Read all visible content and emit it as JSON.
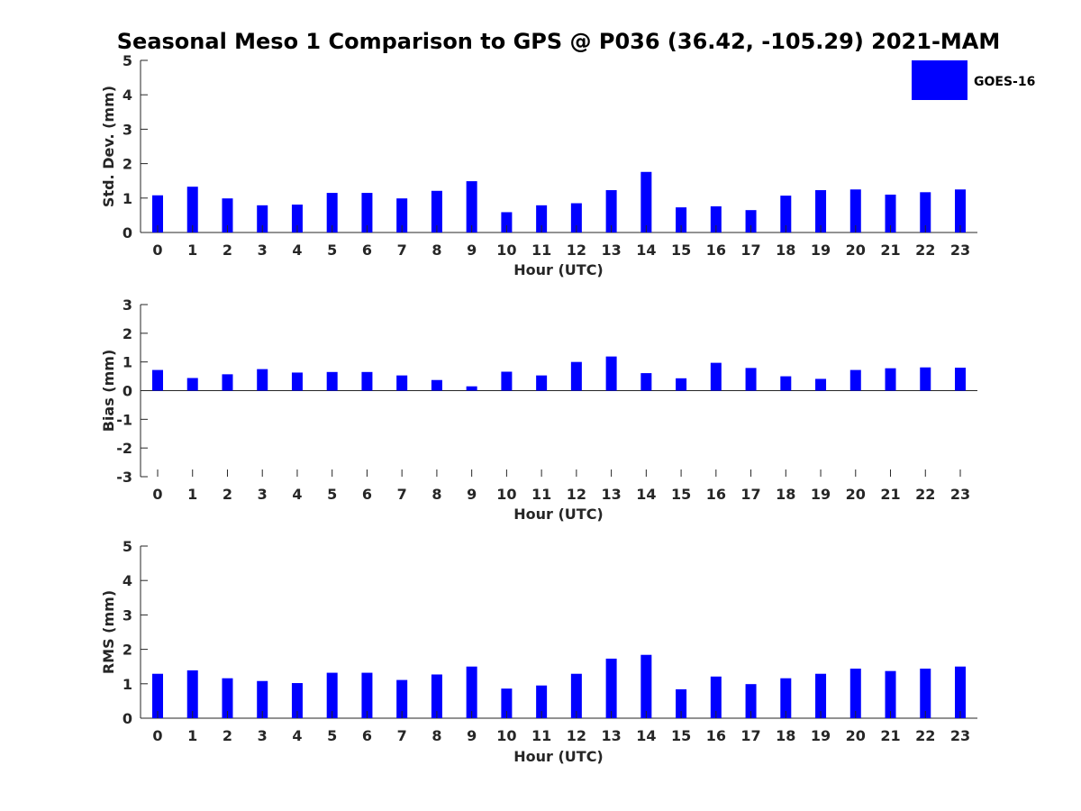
{
  "title": "Seasonal Meso 1 Comparison to GPS @ P036 (36.42, -105.29) 2021-MAM",
  "legend": {
    "label": "GOES-16",
    "color": "#0000ff",
    "position": "top-right"
  },
  "chart_data": [
    {
      "type": "bar",
      "xlabel": "Hour (UTC)",
      "ylabel": "Std. Dev. (mm)",
      "ylim": [
        0,
        5
      ],
      "yticks": [
        "0",
        "1",
        "2",
        "3",
        "4",
        "5"
      ],
      "categories": [
        "0",
        "1",
        "2",
        "3",
        "4",
        "5",
        "6",
        "7",
        "8",
        "9",
        "10",
        "11",
        "12",
        "13",
        "14",
        "15",
        "16",
        "17",
        "18",
        "19",
        "20",
        "21",
        "22",
        "23"
      ],
      "series": [
        {
          "name": "GOES-16",
          "color": "#0000ff",
          "values": [
            1.08,
            1.33,
            0.99,
            0.79,
            0.81,
            1.15,
            1.15,
            0.99,
            1.21,
            1.49,
            0.59,
            0.79,
            0.85,
            1.23,
            1.76,
            0.73,
            0.76,
            0.65,
            1.07,
            1.23,
            1.25,
            1.1,
            1.17,
            1.25
          ]
        }
      ]
    },
    {
      "type": "bar",
      "xlabel": "Hour (UTC)",
      "ylabel": "Bias (mm)",
      "ylim": [
        -3,
        3
      ],
      "yticks": [
        "-3",
        "-2",
        "-1",
        "0",
        "1",
        "2",
        "3"
      ],
      "categories": [
        "0",
        "1",
        "2",
        "3",
        "4",
        "5",
        "6",
        "7",
        "8",
        "9",
        "10",
        "11",
        "12",
        "13",
        "14",
        "15",
        "16",
        "17",
        "18",
        "19",
        "20",
        "21",
        "22",
        "23"
      ],
      "series": [
        {
          "name": "GOES-16",
          "color": "#0000ff",
          "values": [
            0.72,
            0.44,
            0.57,
            0.75,
            0.63,
            0.65,
            0.65,
            0.53,
            0.37,
            0.15,
            0.66,
            0.53,
            1.0,
            1.19,
            0.61,
            0.43,
            0.97,
            0.79,
            0.5,
            0.41,
            0.72,
            0.78,
            0.81,
            0.8
          ]
        }
      ]
    },
    {
      "type": "bar",
      "xlabel": "Hour (UTC)",
      "ylabel": "RMS (mm)",
      "ylim": [
        0,
        5
      ],
      "yticks": [
        "0",
        "1",
        "2",
        "3",
        "4",
        "5"
      ],
      "categories": [
        "0",
        "1",
        "2",
        "3",
        "4",
        "5",
        "6",
        "7",
        "8",
        "9",
        "10",
        "11",
        "12",
        "13",
        "14",
        "15",
        "16",
        "17",
        "18",
        "19",
        "20",
        "21",
        "22",
        "23"
      ],
      "series": [
        {
          "name": "GOES-16",
          "color": "#0000ff",
          "values": [
            1.29,
            1.39,
            1.16,
            1.08,
            1.02,
            1.32,
            1.32,
            1.11,
            1.27,
            1.5,
            0.86,
            0.95,
            1.29,
            1.73,
            1.84,
            0.84,
            1.21,
            0.99,
            1.16,
            1.29,
            1.44,
            1.37,
            1.44,
            1.5
          ]
        }
      ]
    }
  ]
}
